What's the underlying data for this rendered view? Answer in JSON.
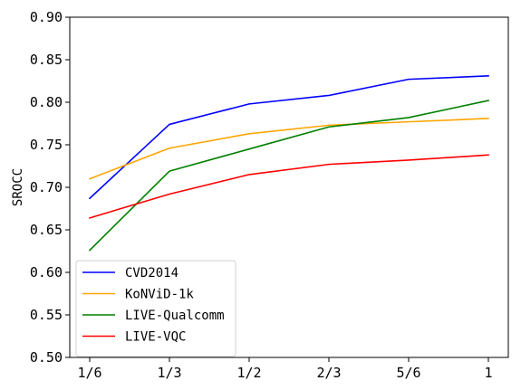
{
  "chart_data": {
    "type": "line",
    "title": "",
    "xlabel": "",
    "ylabel": "SROCC",
    "categories": [
      "1/6",
      "1/3",
      "1/2",
      "2/3",
      "5/6",
      "1"
    ],
    "ylim": [
      0.5,
      0.9
    ],
    "yticks": [
      "0.50",
      "0.55",
      "0.60",
      "0.65",
      "0.70",
      "0.75",
      "0.80",
      "0.85",
      "0.90"
    ],
    "grid": false,
    "legend_position": "lower-left",
    "series": [
      {
        "name": "CVD2014",
        "color": "#0000ff",
        "values": [
          0.687,
          0.774,
          0.798,
          0.808,
          0.827,
          0.831
        ]
      },
      {
        "name": "KoNViD-1k",
        "color": "#ffa500",
        "values": [
          0.71,
          0.746,
          0.763,
          0.773,
          0.777,
          0.781
        ]
      },
      {
        "name": "LIVE-Qualcomm",
        "color": "#008000",
        "values": [
          0.626,
          0.719,
          0.745,
          0.771,
          0.782,
          0.802
        ]
      },
      {
        "name": "LIVE-VQC",
        "color": "#ff0000",
        "values": [
          0.664,
          0.692,
          0.715,
          0.727,
          0.732,
          0.738
        ]
      }
    ]
  }
}
